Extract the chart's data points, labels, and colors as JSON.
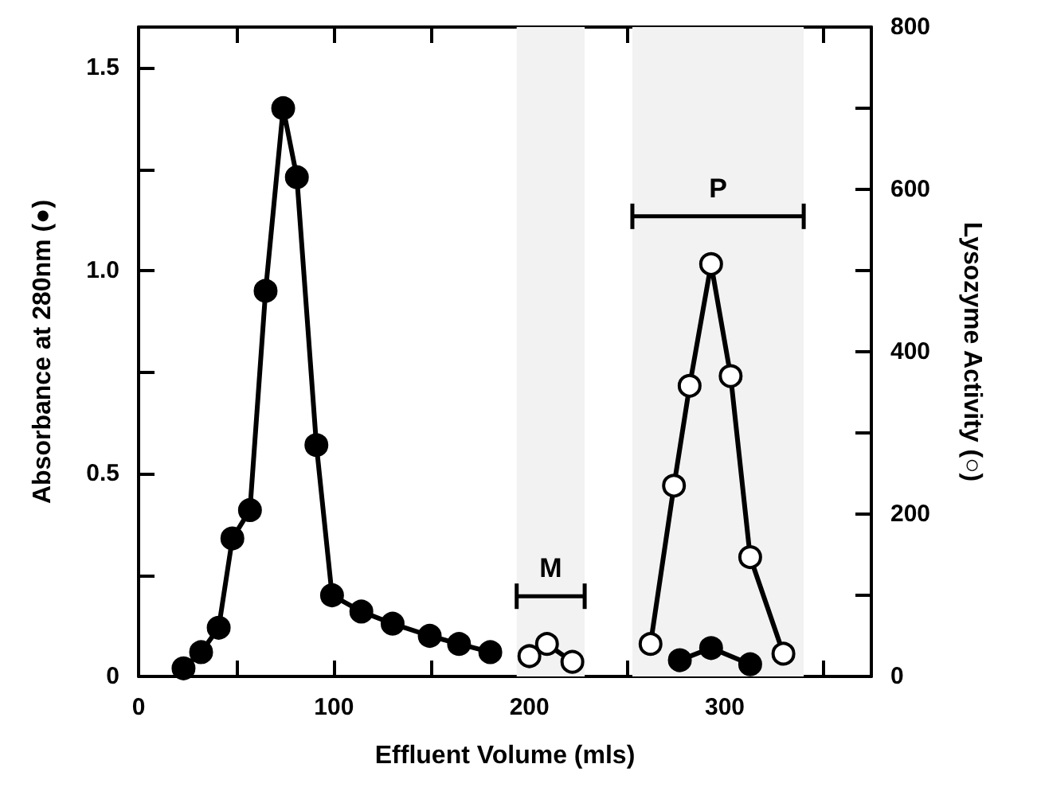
{
  "chart_data": {
    "type": "line",
    "xlabel": "Effluent Volume (mls)",
    "ylabel": "Absorbance at 280nm (●)",
    "y2label": "Lysozyme Activity (○)",
    "xlim": [
      0,
      375
    ],
    "xticks": [
      0,
      {
        "value": 50,
        "label": null
      },
      100,
      {
        "value": 150,
        "label": null
      },
      200,
      {
        "value": 250,
        "label": null
      },
      300,
      {
        "value": 350,
        "label": null
      }
    ],
    "ylim": [
      0,
      1.6
    ],
    "yticks": [
      0,
      {
        "value": 0.25,
        "label": null
      },
      0.5,
      {
        "value": 0.75,
        "label": null
      },
      {
        "value": 1,
        "label": "1.0"
      },
      {
        "value": 1.25,
        "label": null
      },
      1.5
    ],
    "y2lim": [
      0,
      800
    ],
    "y2ticks": [
      0,
      {
        "value": 100,
        "label": null
      },
      200,
      {
        "value": 300,
        "label": null
      },
      400,
      {
        "value": 500,
        "label": null
      },
      600,
      {
        "value": 700,
        "label": null
      },
      800
    ],
    "series": [
      {
        "color": "#000000",
        "x": [
          23,
          32,
          41,
          48,
          57,
          65,
          74,
          81,
          91,
          99,
          114,
          130,
          149,
          164,
          180,
          230,
          277,
          293,
          313
        ],
        "values": [
          0.02,
          0.06,
          0.12,
          0.34,
          0.41,
          0.95,
          1.4,
          1.23,
          0.57,
          0.2,
          0.16,
          0.13,
          0.1,
          0.08,
          0.06,
          null,
          0.04,
          0.07,
          0.03
        ]
      },
      {
        "color": "#000000",
        "axis": "y2",
        "x": [
          200,
          209,
          222,
          240,
          262,
          274,
          282,
          293,
          303,
          313,
          330
        ],
        "values": [
          25,
          40,
          18,
          null,
          40,
          235,
          358,
          508,
          370,
          147,
          28
        ]
      }
    ],
    "bands": [
      {
        "axis": "x",
        "from": 193.5,
        "to": 228.3,
        "label": "M",
        "color": "#f2f2f2"
      },
      {
        "axis": "x",
        "from": 252.7,
        "to": 340.4,
        "label": "P",
        "color": "#f2f2f2"
      }
    ],
    "marker": "circle",
    "line_style": "solid"
  }
}
